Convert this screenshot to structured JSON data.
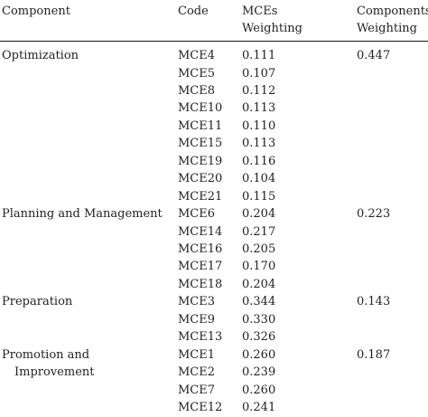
{
  "headers": {
    "component": "Component",
    "code": "Code",
    "mces_line1": "MCEs",
    "mces_line2": "Weighting",
    "comp_line1": "Components",
    "comp_line2": "Weighting"
  },
  "rows": [
    {
      "component": "Optimization",
      "code": "MCE4",
      "mce": "0.111",
      "comp": "0.447"
    },
    {
      "component": "",
      "code": "MCE5",
      "mce": "0.107",
      "comp": ""
    },
    {
      "component": "",
      "code": "MCE8",
      "mce": "0.112",
      "comp": ""
    },
    {
      "component": "",
      "code": "MCE10",
      "mce": "0.113",
      "comp": ""
    },
    {
      "component": "",
      "code": "MCE11",
      "mce": "0.110",
      "comp": ""
    },
    {
      "component": "",
      "code": "MCE15",
      "mce": "0.113",
      "comp": ""
    },
    {
      "component": "",
      "code": "MCE19",
      "mce": "0.116",
      "comp": ""
    },
    {
      "component": "",
      "code": "MCE20",
      "mce": "0.104",
      "comp": ""
    },
    {
      "component": "",
      "code": "MCE21",
      "mce": "0.115",
      "comp": ""
    },
    {
      "component": "Planning and Management",
      "code": "MCE6",
      "mce": "0.204",
      "comp": "0.223"
    },
    {
      "component": "",
      "code": "MCE14",
      "mce": "0.217",
      "comp": ""
    },
    {
      "component": "",
      "code": "MCE16",
      "mce": "0.205",
      "comp": ""
    },
    {
      "component": "",
      "code": "MCE17",
      "mce": "0.170",
      "comp": ""
    },
    {
      "component": "",
      "code": "MCE18",
      "mce": "0.204",
      "comp": ""
    },
    {
      "component": "Preparation",
      "code": "MCE3",
      "mce": "0.344",
      "comp": "0.143"
    },
    {
      "component": "",
      "code": "MCE9",
      "mce": "0.330",
      "comp": ""
    },
    {
      "component": "",
      "code": "MCE13",
      "mce": "0.326",
      "comp": ""
    },
    {
      "component": "Promotion and",
      "code": "MCE1",
      "mce": "0.260",
      "comp": "0.187"
    },
    {
      "component": "Improvement",
      "code": "MCE2",
      "mce": "0.239",
      "comp": ""
    },
    {
      "component": "",
      "code": "MCE7",
      "mce": "0.260",
      "comp": ""
    },
    {
      "component": "",
      "code": "MCE12",
      "mce": "0.241",
      "comp": ""
    }
  ]
}
